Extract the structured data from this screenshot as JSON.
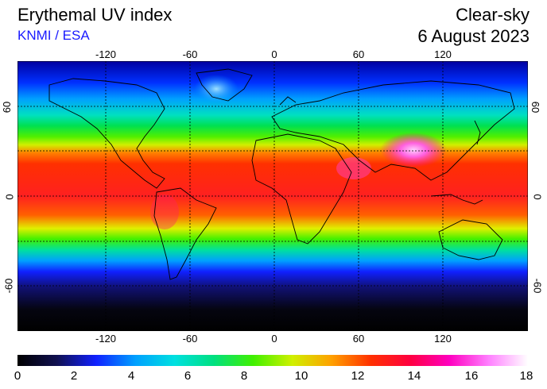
{
  "header": {
    "title": "Erythemal UV index",
    "credit": "KNMI / ESA",
    "mode": "Clear-sky",
    "date": "6 August 2023"
  },
  "map": {
    "projection": "equirectangular",
    "lon_ticks": [
      "-120",
      "-60",
      "0",
      "60",
      "120"
    ],
    "lat_ticks": [
      "60",
      "0",
      "-60"
    ],
    "grid": "dotted"
  },
  "colorbar": {
    "labels": [
      "0",
      "2",
      "4",
      "6",
      "8",
      "10",
      "12",
      "14",
      "16",
      "18"
    ],
    "min": 0,
    "max": 18,
    "stops": [
      "#000000",
      "#101050",
      "#1020ff",
      "#00a0ff",
      "#00e0e0",
      "#00e080",
      "#40f000",
      "#d0f000",
      "#ffa000",
      "#ff3000",
      "#ff0040",
      "#ff00c0",
      "#ff80ff",
      "#ffffff"
    ]
  }
}
